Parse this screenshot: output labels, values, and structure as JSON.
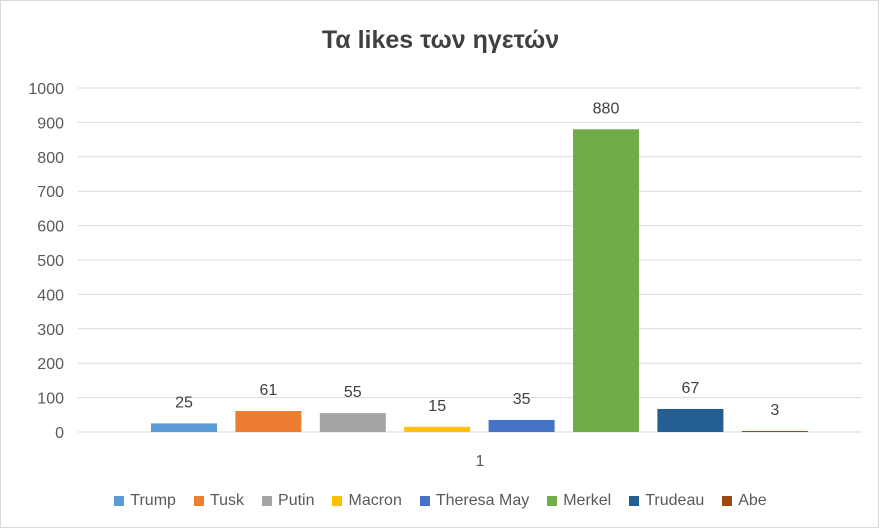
{
  "chart_data": {
    "type": "bar",
    "title": "Τα likes των ηγετών",
    "categories": [
      "1"
    ],
    "ylim": [
      0,
      1000
    ],
    "yticks": [
      0,
      100,
      200,
      300,
      400,
      500,
      600,
      700,
      800,
      900,
      1000
    ],
    "grid": true,
    "legend_position": "bottom",
    "series": [
      {
        "name": "Trump",
        "values": [
          25
        ],
        "color": "#5b9bd5"
      },
      {
        "name": "Tusk",
        "values": [
          61
        ],
        "color": "#ed7d31"
      },
      {
        "name": "Putin",
        "values": [
          55
        ],
        "color": "#a5a5a5"
      },
      {
        "name": "Macron",
        "values": [
          15
        ],
        "color": "#ffc000"
      },
      {
        "name": "Theresa May",
        "values": [
          35
        ],
        "color": "#4472c4"
      },
      {
        "name": "Merkel",
        "values": [
          880
        ],
        "color": "#70ad47"
      },
      {
        "name": "Trudeau",
        "values": [
          67
        ],
        "color": "#255e91"
      },
      {
        "name": "Abe",
        "values": [
          3
        ],
        "color": "#9e480e"
      }
    ]
  }
}
